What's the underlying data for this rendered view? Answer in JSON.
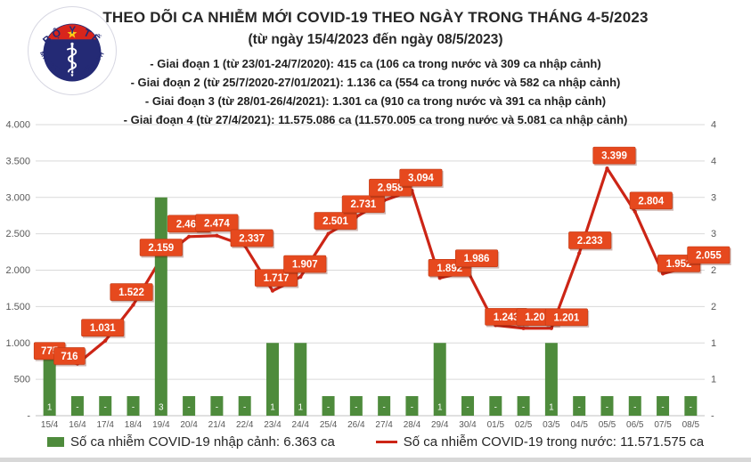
{
  "logo": {
    "top_text": "BỘ Y TẾ",
    "bottom_text": "MINISTRY OF HEALTH"
  },
  "header": {
    "title": "THEO DÕI CA NHIỄM MỚI COVID-19 THEO NGÀY TRONG THÁNG 4-5/2023",
    "subtitle": "(từ ngày 15/4/2023 đến ngày 08/5/2023)",
    "phases": [
      "- Giai đoạn 1 (từ 23/01-24/7/2020): 415 ca (106 ca trong nước và 309 ca nhập cảnh)",
      "- Giai đoạn 2 (từ 25/7/2020-27/01/2021): 1.136 ca (554 ca trong nước và 582 ca nhập cảnh)",
      "- Giai đoạn 3 (từ 28/01-26/4/2021): 1.301 ca (910 ca trong nước và 391 ca nhập cảnh)",
      "- Giai đoạn 4 (từ 27/4/2021): 11.575.086 ca (11.570.005 ca trong nước và 5.081 ca nhập cảnh)"
    ]
  },
  "chart_data": {
    "type": "combo-bar-line",
    "categories": [
      "15/4",
      "16/4",
      "17/4",
      "18/4",
      "19/4",
      "20/4",
      "21/4",
      "22/4",
      "23/4",
      "24/4",
      "25/4",
      "26/4",
      "27/4",
      "28/4",
      "29/4",
      "30/4",
      "01/5",
      "02/5",
      "03/5",
      "04/5",
      "05/5",
      "06/5",
      "07/5",
      "08/5"
    ],
    "series": [
      {
        "name": "Số ca nhiễm COVID-19 nhập cảnh",
        "type": "bar",
        "axis": "right",
        "color": "#4e8b3c",
        "values": [
          1,
          null,
          null,
          null,
          3,
          null,
          null,
          null,
          1,
          1,
          null,
          null,
          null,
          null,
          1,
          null,
          null,
          null,
          1,
          null,
          null,
          null,
          null,
          null
        ],
        "labels": [
          "1",
          "-",
          "-",
          "-",
          "3",
          "-",
          "-",
          "-",
          "1",
          "1",
          "-",
          "-",
          "-",
          "-",
          "1",
          "-",
          "-",
          "-",
          "1",
          "-",
          "-",
          "-",
          "-",
          "-"
        ]
      },
      {
        "name": "Số ca nhiễm COVID-19 trong nước",
        "type": "line",
        "axis": "left",
        "color": "#cc2516",
        "label_bg": "#e6491e",
        "values": [
          775,
          716,
          1031,
          1522,
          2159,
          2461,
          2474,
          2337,
          1717,
          1907,
          2501,
          2731,
          2958,
          3094,
          1892,
          1986,
          1243,
          1202,
          1201,
          2233,
          3399,
          2804,
          1952,
          2055
        ],
        "labels": [
          "775",
          "716",
          "1.031",
          "1.522",
          "2.159",
          "2.461",
          "2.474",
          "2.337",
          "1.717",
          "1.907",
          "2.501",
          "2.731",
          "2.958",
          "3.094",
          "1.892",
          "1.986",
          "1.243",
          "1.202",
          "1.201",
          "2.233",
          "3.399",
          "2.804",
          "1.952",
          "2.055"
        ]
      }
    ],
    "left_axis": {
      "min": 0,
      "max": 4000,
      "tick_step": 500,
      "tick_labels_bottom_up": [
        "-",
        "500",
        "1.000",
        "1.500",
        "2.000",
        "2.500",
        "3.000",
        "3.500",
        "4.000"
      ]
    },
    "right_axis": {
      "min": 0,
      "max": 4,
      "tick_step": 0.5,
      "tick_labels_bottom_up": [
        "-",
        "1",
        "1",
        "2",
        "2",
        "3",
        "3",
        "4",
        "4"
      ]
    },
    "grid": true,
    "legend_position": "bottom",
    "legend": [
      {
        "swatch": "bar",
        "label": "Số ca nhiễm COVID-19 nhập cảnh: 6.363 ca"
      },
      {
        "swatch": "line",
        "label": "Số ca nhiễm COVID-19 trong nước: 11.571.575 ca"
      }
    ],
    "colors": {
      "grid": "#d9d9d9",
      "axis_text": "#595959",
      "baseline": "#c2c2c2"
    }
  }
}
